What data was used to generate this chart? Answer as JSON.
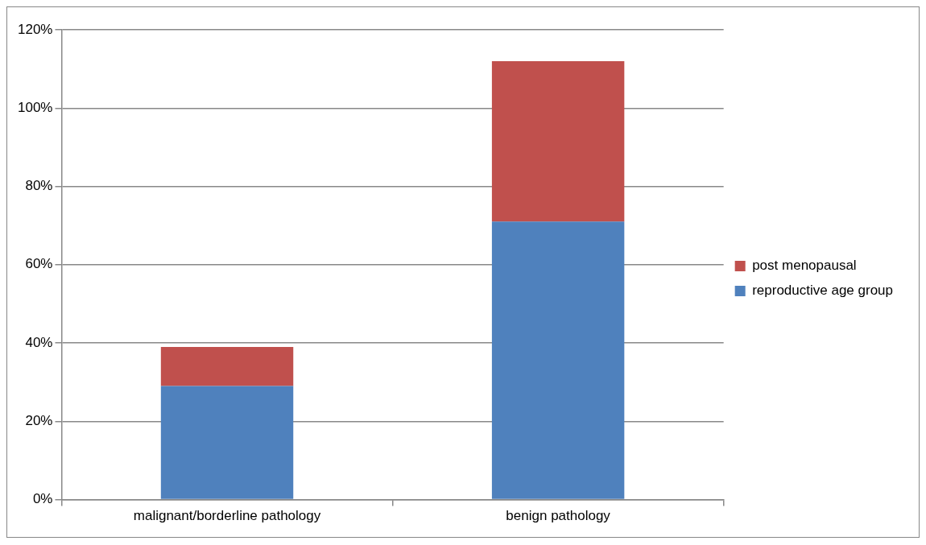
{
  "chart_data": {
    "type": "bar",
    "stacked": true,
    "categories": [
      "malignant/borderline pathology",
      "benign pathology"
    ],
    "series": [
      {
        "name": "reproductive age group",
        "color": "#4f81bd",
        "values": [
          29,
          71
        ]
      },
      {
        "name": "post menopausal",
        "color": "#c0504d",
        "values": [
          10,
          41
        ]
      }
    ],
    "ylim": [
      0,
      120
    ],
    "yticks": [
      {
        "value": 0,
        "label": "0%"
      },
      {
        "value": 20,
        "label": "20%"
      },
      {
        "value": 40,
        "label": "40%"
      },
      {
        "value": 60,
        "label": "60%"
      },
      {
        "value": 80,
        "label": "80%"
      },
      {
        "value": 100,
        "label": "100%"
      },
      {
        "value": 120,
        "label": "120%"
      }
    ],
    "grid": "y",
    "legend": "right"
  }
}
